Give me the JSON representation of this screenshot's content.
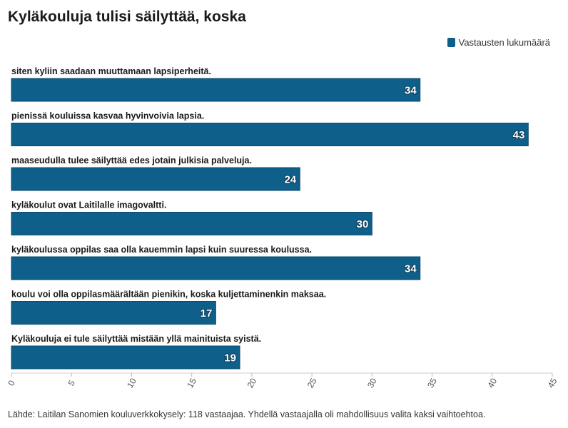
{
  "title": "Kyläkouluja tulisi säilyttää, koska",
  "legend": {
    "label": "Vastausten lukumäärä",
    "color": "#0e5f8a"
  },
  "footer": "Lähde: Laitilan Sanomien kouluverkkokysely: 118 vastaajaa. Yhdellä vastaajalla oli mahdollisuus valita kaksi vaihtoehtoa.",
  "chart_data": {
    "type": "bar",
    "orientation": "horizontal",
    "title": "Kyläkouluja tulisi säilyttää, koska",
    "categories": [
      "siten kyliin saadaan muuttamaan lapsiperheitä.",
      "pienissä kouluissa kasvaa hyvinvoivia lapsia.",
      "maaseudulla tulee säilyttää edes jotain julkisia palveluja.",
      "kyläkoulut ovat Laitilalle imagovaltti.",
      "kyläkoulussa oppilas saa olla kauemmin lapsi kuin suuressa koulussa.",
      "koulu voi olla oppilasmäärältään pienikin, koska kuljettaminenkin maksaa.",
      "Kyläkouluja ei tule säilyttää mistään yllä mainituista syistä."
    ],
    "series": [
      {
        "name": "Vastausten lukumäärä",
        "values": [
          34,
          43,
          24,
          30,
          34,
          17,
          19
        ],
        "color": "#0e5f8a"
      }
    ],
    "xlim": [
      0,
      45
    ],
    "xticks": [
      0,
      5,
      10,
      15,
      20,
      25,
      30,
      35,
      40,
      45
    ],
    "grid": false,
    "legend_position": "top-right"
  }
}
